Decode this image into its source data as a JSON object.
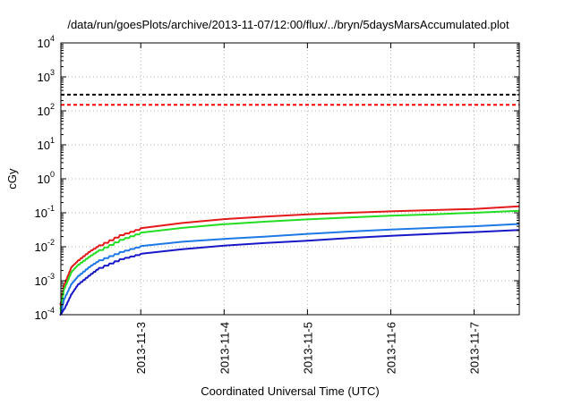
{
  "chart_data": {
    "type": "line",
    "title": "/data/run/goesPlots/archive/2013-11-07/12:00/flux/../bryn/5daysMarsAccumulated.plot",
    "xlabel": "Coordinated Universal Time (UTC)",
    "ylabel": "cGy",
    "y_scale": "log",
    "ylim": [
      0.0001,
      10000
    ],
    "xlim": [
      "2013-11-02T01:00",
      "2013-11-07T13:00"
    ],
    "grid": true,
    "legend": "none",
    "x_ticks": [
      "2013-11-3",
      "2013-11-4",
      "2013-11-5",
      "2013-11-6",
      "2013-11-7"
    ],
    "y_ticks": [
      {
        "value": 0.0001,
        "base": "10",
        "exp": "-4"
      },
      {
        "value": 0.001,
        "base": "10",
        "exp": "-3"
      },
      {
        "value": 0.01,
        "base": "10",
        "exp": "-2"
      },
      {
        "value": 0.1,
        "base": "10",
        "exp": "-1"
      },
      {
        "value": 1,
        "base": "10",
        "exp": "0"
      },
      {
        "value": 10,
        "base": "10",
        "exp": "1"
      },
      {
        "value": 100,
        "base": "10",
        "exp": "2"
      },
      {
        "value": 1000,
        "base": "10",
        "exp": "3"
      },
      {
        "value": 10000,
        "base": "10",
        "exp": "4"
      }
    ],
    "reference_lines": [
      {
        "y": 300,
        "color": "#000000",
        "style": "dashed"
      },
      {
        "y": 150,
        "color": "#ff0000",
        "style": "dashed"
      }
    ],
    "series": [
      {
        "color": "#e31a1c",
        "x": [
          "2013-11-02T01:00",
          "2013-11-02T02:00",
          "2013-11-02T04:00",
          "2013-11-02T06:00",
          "2013-11-02T09:00",
          "2013-11-02T12:00",
          "2013-11-02T18:00",
          "2013-11-03T00:00",
          "2013-11-03T12:00",
          "2013-11-04T00:00",
          "2013-11-04T12:00",
          "2013-11-05T00:00",
          "2013-11-05T12:00",
          "2013-11-06T00:00",
          "2013-11-06T12:00",
          "2013-11-07T00:00",
          "2013-11-07T13:00"
        ],
        "y": [
          0.0002,
          0.0008,
          0.0025,
          0.004,
          0.007,
          0.011,
          0.022,
          0.035,
          0.05,
          0.065,
          0.077,
          0.09,
          0.1,
          0.11,
          0.12,
          0.13,
          0.155
        ]
      },
      {
        "color": "#22dd22",
        "x": [
          "2013-11-02T01:00",
          "2013-11-02T02:00",
          "2013-11-02T04:00",
          "2013-11-02T06:00",
          "2013-11-02T09:00",
          "2013-11-02T12:00",
          "2013-11-02T18:00",
          "2013-11-03T00:00",
          "2013-11-03T12:00",
          "2013-11-04T00:00",
          "2013-11-04T12:00",
          "2013-11-05T00:00",
          "2013-11-05T12:00",
          "2013-11-06T00:00",
          "2013-11-06T12:00",
          "2013-11-07T00:00",
          "2013-11-07T13:00"
        ],
        "y": [
          0.00015,
          0.0006,
          0.0018,
          0.003,
          0.005,
          0.008,
          0.016,
          0.026,
          0.036,
          0.046,
          0.055,
          0.064,
          0.073,
          0.082,
          0.09,
          0.1,
          0.115
        ]
      },
      {
        "color": "#1e78e6",
        "x": [
          "2013-11-02T01:00",
          "2013-11-02T02:00",
          "2013-11-02T04:00",
          "2013-11-02T06:00",
          "2013-11-02T09:00",
          "2013-11-02T12:00",
          "2013-11-02T18:00",
          "2013-11-03T00:00",
          "2013-11-03T12:00",
          "2013-11-04T00:00",
          "2013-11-04T12:00",
          "2013-11-05T00:00",
          "2013-11-05T12:00",
          "2013-11-06T00:00",
          "2013-11-06T12:00",
          "2013-11-07T00:00",
          "2013-11-07T13:00"
        ],
        "y": [
          0.0001,
          0.0003,
          0.0008,
          0.0014,
          0.0025,
          0.004,
          0.007,
          0.0105,
          0.014,
          0.017,
          0.02,
          0.024,
          0.028,
          0.032,
          0.036,
          0.04,
          0.047
        ]
      },
      {
        "color": "#1818c8",
        "x": [
          "2013-11-02T01:00",
          "2013-11-02T02:00",
          "2013-11-02T04:00",
          "2013-11-02T06:00",
          "2013-11-02T09:00",
          "2013-11-02T12:00",
          "2013-11-02T18:00",
          "2013-11-03T00:00",
          "2013-11-03T12:00",
          "2013-11-04T00:00",
          "2013-11-04T12:00",
          "2013-11-05T00:00",
          "2013-11-05T12:00",
          "2013-11-06T00:00",
          "2013-11-06T12:00",
          "2013-11-07T00:00",
          "2013-11-07T13:00"
        ],
        "y": [
          0.0001,
          0.00015,
          0.0004,
          0.0008,
          0.0014,
          0.0024,
          0.0043,
          0.0062,
          0.0085,
          0.0108,
          0.013,
          0.015,
          0.018,
          0.021,
          0.024,
          0.027,
          0.031
        ]
      }
    ]
  }
}
